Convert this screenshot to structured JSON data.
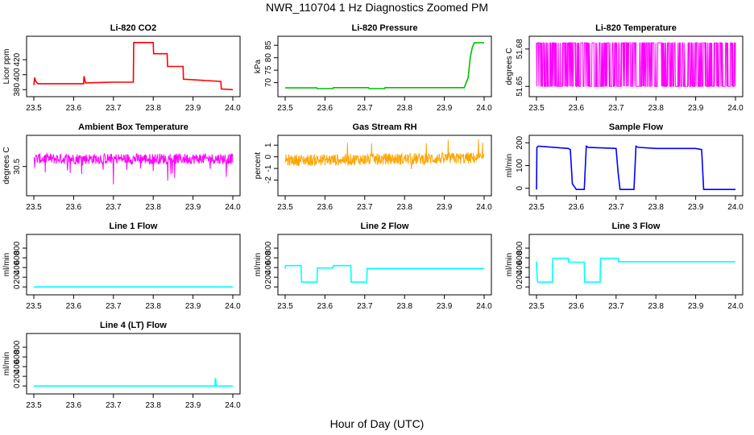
{
  "figure": {
    "title": "NWR_110704  1 Hz Diagnostics Zoomed PM",
    "xlabel": "Hour of Day (UTC)"
  },
  "chart_data": [
    {
      "type": "line",
      "title": "Li-820 CO2",
      "ylabel": "Licor ppm",
      "color": "#ff0000",
      "xlim": [
        23.5,
        24.0
      ],
      "ylim": [
        376,
        446
      ],
      "xticks": [
        "23.5",
        "23.6",
        "23.7",
        "23.8",
        "23.9",
        "24.0"
      ],
      "yticks": [
        "380",
        "400",
        "420"
      ],
      "series": [
        {
          "x": [
            23.5,
            23.502,
            23.505,
            23.51,
            23.52,
            23.625,
            23.626,
            23.63,
            23.7,
            23.75,
            23.751,
            23.8,
            23.801,
            23.835,
            23.836,
            23.875,
            23.876,
            23.97,
            23.971,
            24.0
          ],
          "y": [
            386,
            396,
            391,
            388,
            388,
            388,
            398,
            389,
            390,
            390,
            443,
            443,
            428,
            428,
            411,
            411,
            394,
            391,
            381,
            380
          ]
        }
      ]
    },
    {
      "type": "line",
      "title": "Li-820 Pressure",
      "ylabel": "kPa",
      "color": "#00c000",
      "xlim": [
        23.5,
        24.0
      ],
      "ylim": [
        66,
        87
      ],
      "xticks": [
        "23.5",
        "23.6",
        "23.7",
        "23.8",
        "23.9",
        "24.0"
      ],
      "yticks": [
        "70",
        "75",
        "80",
        "85"
      ],
      "series": [
        {
          "x": [
            23.5,
            23.58,
            23.581,
            23.62,
            23.621,
            23.71,
            23.711,
            23.75,
            23.751,
            23.95,
            23.96,
            23.965,
            23.97,
            23.975,
            24.0
          ],
          "y": [
            67.9,
            67.9,
            67.6,
            67.6,
            68.0,
            68.0,
            67.6,
            67.6,
            68.0,
            68.0,
            72,
            80,
            84,
            86,
            86
          ]
        }
      ]
    },
    {
      "type": "line",
      "title": "Li-820 Temperature",
      "ylabel": "degrees C",
      "color": "#ff00ff",
      "xlim": [
        23.5,
        24.0
      ],
      "ylim": [
        51.645,
        51.687
      ],
      "xticks": [
        "23.5",
        "23.6",
        "23.7",
        "23.8",
        "23.9",
        "24.0"
      ],
      "yticks": [
        "51.65",
        "51.68"
      ],
      "series": [
        {
          "x": [
            23.5,
            24.0
          ],
          "y": [
            51.65,
            51.685
          ],
          "pattern": "noise"
        }
      ]
    },
    {
      "type": "line",
      "title": "Ambient Box Temperature",
      "ylabel": "degrees C",
      "color": "#ff00ff",
      "xlim": [
        23.5,
        24.0
      ],
      "ylim": [
        29.2,
        31.9
      ],
      "xticks": [
        "23.5",
        "23.6",
        "23.7",
        "23.8",
        "23.9",
        "24.0"
      ],
      "yticks": [
        "30.5"
      ],
      "series": [
        {
          "x": [
            23.5,
            24.0
          ],
          "y": [
            30.9,
            30.9
          ],
          "pattern": "noise"
        }
      ]
    },
    {
      "type": "line",
      "title": "Gas Stream RH",
      "ylabel": "percent",
      "color": "#ffa500",
      "xlim": [
        23.5,
        24.0
      ],
      "ylim": [
        -3.0,
        1.5
      ],
      "xticks": [
        "23.5",
        "23.6",
        "23.7",
        "23.8",
        "23.9",
        "24.0"
      ],
      "yticks": [
        "-2",
        "-1",
        "0",
        "1"
      ],
      "series": [
        {
          "x": [
            23.5,
            24.0
          ],
          "y": [
            -0.3,
            -0.1
          ],
          "pattern": "noise"
        }
      ]
    },
    {
      "type": "line",
      "title": "Sample Flow",
      "ylabel": "ml/min",
      "color": "#0000ff",
      "xlim": [
        23.5,
        24.0
      ],
      "ylim": [
        -15,
        215
      ],
      "xticks": [
        "23.5",
        "23.6",
        "23.7",
        "23.8",
        "23.9",
        "24.0"
      ],
      "yticks": [
        "0",
        "100",
        "200"
      ],
      "series": [
        {
          "x": [
            23.5,
            23.501,
            23.505,
            23.58,
            23.585,
            23.59,
            23.6,
            23.62,
            23.625,
            23.63,
            23.7,
            23.705,
            23.71,
            23.745,
            23.75,
            23.755,
            23.8,
            23.9,
            23.915,
            23.92,
            24.0
          ],
          "y": [
            -5,
            180,
            185,
            175,
            170,
            20,
            -5,
            -5,
            185,
            180,
            175,
            70,
            -5,
            -5,
            185,
            180,
            175,
            175,
            170,
            -5,
            -5
          ]
        }
      ]
    },
    {
      "type": "line",
      "title": "Line 1 Flow",
      "ylabel": "ml/min",
      "color": "#00ffff",
      "xlim": [
        23.5,
        24.0
      ],
      "ylim": [
        -80,
        1000
      ],
      "xticks": [
        "23.5",
        "23.6",
        "23.7",
        "23.8",
        "23.9",
        "24.0"
      ],
      "yticks": [
        "0",
        "200",
        "400",
        "600",
        "800"
      ],
      "series": [
        {
          "x": [
            23.5,
            24.0
          ],
          "y": [
            0,
            0
          ]
        }
      ]
    },
    {
      "type": "line",
      "title": "Line 2 Flow",
      "ylabel": "ml/min",
      "color": "#00ffff",
      "xlim": [
        23.5,
        24.0
      ],
      "ylim": [
        -80,
        1000
      ],
      "xticks": [
        "23.5",
        "23.6",
        "23.7",
        "23.8",
        "23.9",
        "24.0"
      ],
      "yticks": [
        "0",
        "200",
        "400",
        "600",
        "800"
      ],
      "series": [
        {
          "x": [
            23.5,
            23.501,
            23.54,
            23.541,
            23.58,
            23.581,
            23.62,
            23.621,
            23.665,
            23.666,
            23.705,
            23.706,
            24.0
          ],
          "y": [
            380,
            440,
            440,
            100,
            100,
            390,
            390,
            440,
            440,
            100,
            100,
            380,
            380
          ]
        }
      ]
    },
    {
      "type": "line",
      "title": "Line 3 Flow",
      "ylabel": "ml/min",
      "color": "#00ffff",
      "xlim": [
        23.5,
        24.0
      ],
      "ylim": [
        -80,
        1000
      ],
      "xticks": [
        "23.5",
        "23.6",
        "23.7",
        "23.8",
        "23.9",
        "24.0"
      ],
      "yticks": [
        "0",
        "200",
        "400",
        "600",
        "800"
      ],
      "series": [
        {
          "x": [
            23.5,
            23.502,
            23.504,
            23.54,
            23.541,
            23.58,
            23.581,
            23.62,
            23.621,
            23.66,
            23.661,
            23.705,
            23.706,
            24.0
          ],
          "y": [
            520,
            120,
            100,
            100,
            590,
            590,
            510,
            510,
            100,
            100,
            590,
            590,
            520,
            520
          ]
        }
      ]
    },
    {
      "type": "line",
      "title": "Line 4 (LT) Flow",
      "ylabel": "ml/min",
      "color": "#00ffff",
      "xlim": [
        23.5,
        24.0
      ],
      "ylim": [
        -80,
        1000
      ],
      "xticks": [
        "23.5",
        "23.6",
        "23.7",
        "23.8",
        "23.9",
        "24.0"
      ],
      "yticks": [
        "0",
        "200",
        "400",
        "600",
        "800"
      ],
      "series": [
        {
          "x": [
            23.5,
            23.955,
            23.956,
            23.957,
            23.958,
            24.0
          ],
          "y": [
            0,
            0,
            150,
            150,
            0,
            0
          ]
        }
      ]
    }
  ]
}
